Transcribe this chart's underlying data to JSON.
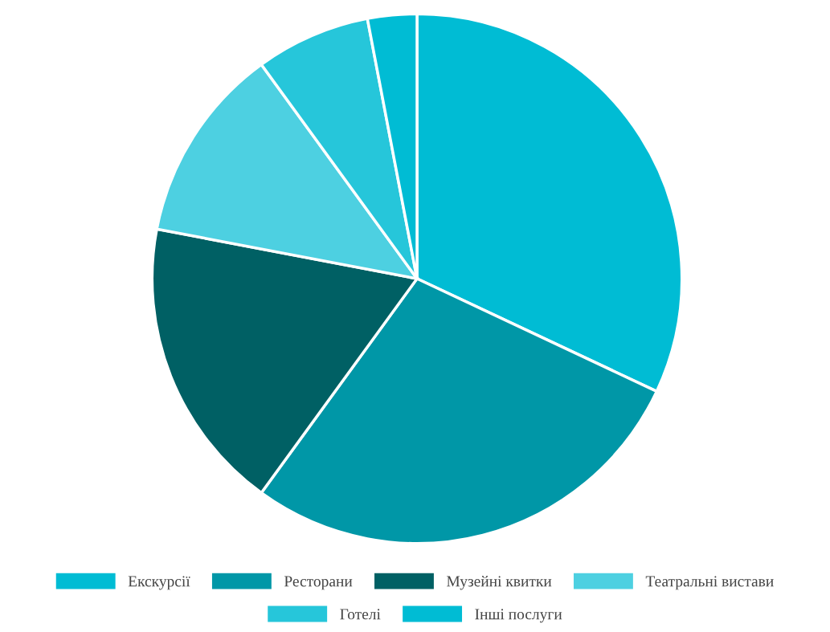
{
  "chart_data": {
    "type": "pie",
    "categories": [
      "Екскурсії",
      "Ресторани",
      "Музейні квитки",
      "Театральні вистави",
      "Готелі",
      "Інші послуги"
    ],
    "values": [
      32,
      28,
      18,
      12,
      7,
      3
    ],
    "colors": [
      "#00bcd4",
      "#0097a7",
      "#006064",
      "#4dd0e1",
      "#26c6da",
      "#00bcd4"
    ],
    "legend": "bottom"
  }
}
